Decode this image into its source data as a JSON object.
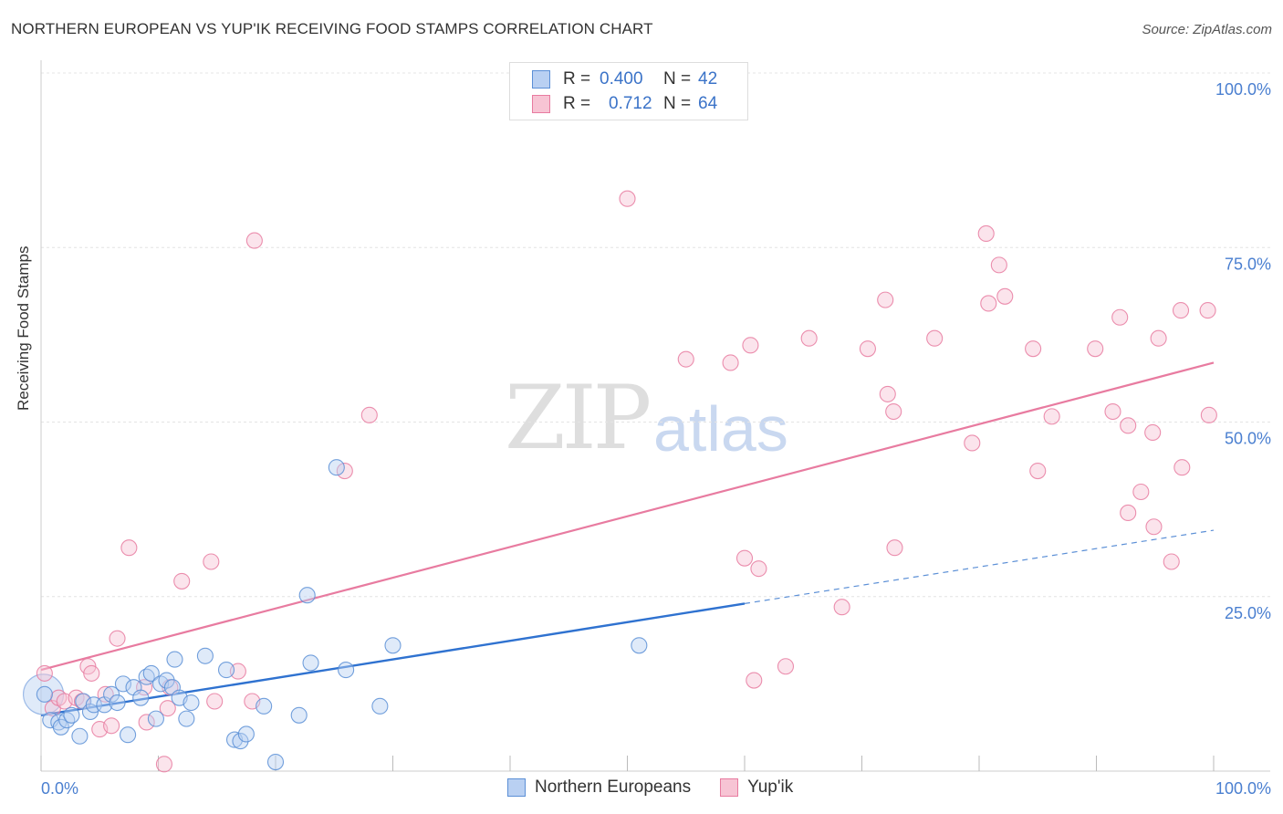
{
  "header": {
    "title": "NORTHERN EUROPEAN VS YUP'IK RECEIVING FOOD STAMPS CORRELATION CHART",
    "source": "Source: ZipAtlas.com"
  },
  "watermark": {
    "zip": "ZIP",
    "atlas": "atlas"
  },
  "legend_top": [
    {
      "r_label": "R =",
      "r_value": "0.400",
      "n_label": "N =",
      "n_value": "42",
      "color": "#5b8fd6",
      "fill": "#b9d0f2"
    },
    {
      "r_label": "R =",
      "r_value": "0.712",
      "n_label": "N =",
      "n_value": "64",
      "color": "#e87ba0",
      "fill": "#f7c4d4"
    }
  ],
  "legend_bottom": [
    {
      "label": "Northern Europeans",
      "color": "#5b8fd6",
      "fill": "#b9d0f2"
    },
    {
      "label": "Yup'ik",
      "color": "#e87ba0",
      "fill": "#f7c4d4"
    }
  ],
  "chart_data": {
    "type": "scatter",
    "title": "NORTHERN EUROPEAN VS YUP'IK RECEIVING FOOD STAMPS CORRELATION CHART",
    "xlabel": "",
    "ylabel": "Receiving Food Stamps",
    "xlim": [
      0,
      100
    ],
    "ylim": [
      0,
      100
    ],
    "x_tick_labels": [
      "0.0%",
      "100.0%"
    ],
    "y_tick_labels": [
      "25.0%",
      "50.0%",
      "75.0%",
      "100.0%"
    ],
    "y_ticks": [
      25,
      50,
      75,
      100
    ],
    "grid": true,
    "legend": "top-center",
    "series": [
      {
        "name": "Northern Europeans",
        "color": "#5b8fd6",
        "points": [
          [
            0.3,
            11
          ],
          [
            0.8,
            7.3
          ],
          [
            1.5,
            7
          ],
          [
            1.7,
            6.3
          ],
          [
            2.2,
            7.3
          ],
          [
            2.6,
            8
          ],
          [
            3.3,
            5
          ],
          [
            3.6,
            10
          ],
          [
            4.2,
            8.5
          ],
          [
            4.5,
            9.5
          ],
          [
            5.4,
            9.5
          ],
          [
            6.0,
            11
          ],
          [
            6.5,
            9.8
          ],
          [
            7.0,
            12.5
          ],
          [
            7.4,
            5.2
          ],
          [
            7.9,
            12
          ],
          [
            8.5,
            10.5
          ],
          [
            9.0,
            13.5
          ],
          [
            9.4,
            14
          ],
          [
            9.8,
            7.5
          ],
          [
            10.2,
            12.5
          ],
          [
            10.7,
            13
          ],
          [
            11.2,
            12
          ],
          [
            11.4,
            16
          ],
          [
            11.8,
            10.5
          ],
          [
            12.4,
            7.5
          ],
          [
            12.8,
            9.8
          ],
          [
            14.0,
            16.5
          ],
          [
            15.8,
            14.5
          ],
          [
            16.5,
            4.5
          ],
          [
            17.0,
            4.3
          ],
          [
            17.5,
            5.3
          ],
          [
            19.0,
            9.3
          ],
          [
            20.0,
            1.3
          ],
          [
            22.0,
            8
          ],
          [
            22.7,
            25.2
          ],
          [
            23.0,
            15.5
          ],
          [
            25.2,
            43.5
          ],
          [
            26.0,
            14.5
          ],
          [
            28.9,
            9.3
          ],
          [
            30.0,
            18
          ],
          [
            51.0,
            18
          ]
        ],
        "trend": {
          "x_start": 0,
          "y_start": 8,
          "x_end": 60,
          "y_end": 24,
          "dashed_to_x": 100,
          "dashed_to_y": 34.5
        }
      },
      {
        "name": "Yup'ik",
        "color": "#e87ba0",
        "points": [
          [
            0.3,
            14
          ],
          [
            1.0,
            9
          ],
          [
            1.5,
            10.5
          ],
          [
            2.0,
            10
          ],
          [
            3.0,
            10.5
          ],
          [
            3.5,
            10
          ],
          [
            4.0,
            15
          ],
          [
            4.3,
            14
          ],
          [
            5.0,
            6
          ],
          [
            5.5,
            11
          ],
          [
            6.0,
            6.5
          ],
          [
            6.5,
            19
          ],
          [
            7.5,
            32
          ],
          [
            8.8,
            12
          ],
          [
            9.0,
            7
          ],
          [
            10.5,
            1
          ],
          [
            10.8,
            9
          ],
          [
            11.0,
            12
          ],
          [
            12.0,
            27.2
          ],
          [
            14.5,
            30
          ],
          [
            14.8,
            10
          ],
          [
            16.8,
            14.3
          ],
          [
            18.0,
            10
          ],
          [
            18.2,
            76
          ],
          [
            25.9,
            43
          ],
          [
            28.0,
            51
          ],
          [
            50.0,
            82
          ],
          [
            55.0,
            59
          ],
          [
            58.8,
            58.5
          ],
          [
            60.0,
            30.5
          ],
          [
            60.5,
            61
          ],
          [
            60.8,
            13
          ],
          [
            61.2,
            29
          ],
          [
            63.5,
            15
          ],
          [
            65.5,
            62
          ],
          [
            68.3,
            23.5
          ],
          [
            70.5,
            60.5
          ],
          [
            72.0,
            67.5
          ],
          [
            72.2,
            54
          ],
          [
            72.7,
            51.5
          ],
          [
            72.8,
            32
          ],
          [
            76.2,
            62
          ],
          [
            79.4,
            47
          ],
          [
            80.6,
            77
          ],
          [
            80.8,
            67
          ],
          [
            81.7,
            72.5
          ],
          [
            82.2,
            68
          ],
          [
            84.6,
            60.5
          ],
          [
            85.0,
            43
          ],
          [
            86.2,
            50.8
          ],
          [
            89.9,
            60.5
          ],
          [
            91.4,
            51.5
          ],
          [
            92.0,
            65
          ],
          [
            92.7,
            37
          ],
          [
            92.7,
            49.5
          ],
          [
            93.8,
            40
          ],
          [
            94.8,
            48.5
          ],
          [
            94.9,
            35
          ],
          [
            95.3,
            62
          ],
          [
            96.4,
            30
          ],
          [
            97.2,
            66
          ],
          [
            97.3,
            43.5
          ],
          [
            99.5,
            66
          ],
          [
            99.6,
            51
          ]
        ],
        "trend": {
          "x_start": 0,
          "y_start": 14.5,
          "x_end": 100,
          "y_end": 58.5
        }
      }
    ]
  }
}
